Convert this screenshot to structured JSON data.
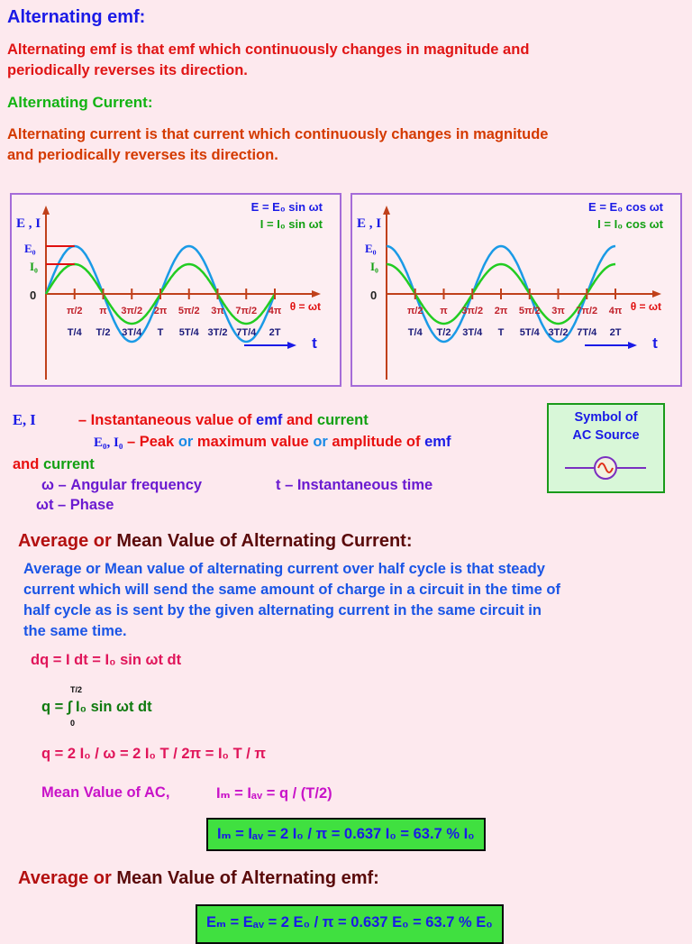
{
  "heading_emf": "Alternating emf:",
  "def_emf_1": "Alternating emf is that emf  which continuously changes in magnitude and",
  "def_emf_2": "periodically reverses its direction.",
  "heading_current": "Alternating Current:",
  "def_current_1": "Alternating current is that current  which continuously changes in magnitude",
  "def_current_2": "and periodically reverses its direction.",
  "graphs": [
    {
      "eq1": "E  = E₀ sin ωt",
      "eq2": "I  = I₀ sin ωt",
      "axis_y": "E , I",
      "label_e0": "E₀",
      "label_i0": "I₀",
      "label_zero": "0",
      "theta_labels": [
        "π/2",
        "π",
        "3π/2",
        "2π",
        "5π/2",
        "3π",
        "7π/2",
        "4π"
      ],
      "theta_axis": "θ = ωt",
      "t_labels": [
        "T/4",
        "T/2",
        "3T/4",
        "T",
        "5T/4",
        "3T/2",
        "7T/4",
        "2T"
      ],
      "t_axis": "t",
      "function": "sin"
    },
    {
      "eq1": "E  = E₀ cos ωt",
      "eq2": "I  = I₀ cos ωt",
      "axis_y": "E , I",
      "label_e0": "E₀",
      "label_i0": "I₀",
      "label_zero": "0",
      "theta_labels": [
        "π/2",
        "π",
        "3π/2",
        "2π",
        "5π/2",
        "3π",
        "7π/2",
        "4π"
      ],
      "theta_axis": "θ = ωt",
      "t_labels": [
        "T/4",
        "T/2",
        "3T/4",
        "T",
        "5T/4",
        "3T/2",
        "7T/4",
        "2T"
      ],
      "t_axis": "t",
      "function": "cos"
    }
  ],
  "legend": {
    "ei": "E, I",
    "inst_dash": "– Instantaneous value of",
    "inst_emf": "emf",
    "inst_and": "and",
    "inst_current": "current",
    "peak_sym": "E₀, I₀",
    "peak_dash": "– Peak",
    "peak_or1": "or",
    "peak_max": "maximum value",
    "peak_or2": "or",
    "peak_amp": "amplitude of",
    "peak_emf": "emf",
    "and2": "and",
    "current2": "current",
    "omega": "ω – Angular frequency",
    "time": "t – Instantaneous time",
    "phase": "ωt – Phase"
  },
  "symbol": {
    "line1": "Symbol of",
    "line2": "AC Source"
  },
  "heading_avg_current_a": "Average or ",
  "heading_avg_current_b": "Mean Value of Alternating Current:",
  "avg_para": [
    "Average or Mean value of alternating current over half cycle is that steady",
    "current which will send the same amount of charge in a circuit in the time of",
    "half cycle as is sent by the given alternating current in the same circuit in",
    "the same time."
  ],
  "eq_dq": "dq = I dt = I₀ sin ωt dt",
  "eq_q_integral": "q = ∫ I₀ sin ωt dt",
  "integral_upper": "T/2",
  "integral_lower": "0",
  "eq_q_result": "q = 2 I₀ / ω   =   2 I₀ T / 2π   =    I₀ T / π",
  "mean_value_label": "Mean Value of AC,",
  "mean_value_eq": "Iₘ = Iₐᵥ   =   q / (T/2)",
  "box_current": "Iₘ = Iₐᵥ   =  2 I₀ / π   =  0.637 I₀   =  63.7 % I₀",
  "heading_avg_emf_a": "Average or ",
  "heading_avg_emf_b": "Mean Value of Alternating emf:",
  "box_emf": "Eₘ = Eₐᵥ   =  2 E₀ / π   =  0.637 E₀   =  63.7 % E₀",
  "colors": {
    "background": "#fde9ee",
    "emf_curve": "#1a9ae6",
    "current_curve": "#22cc22",
    "axis": "#c0401a",
    "panel_border": "#a56cd8"
  }
}
